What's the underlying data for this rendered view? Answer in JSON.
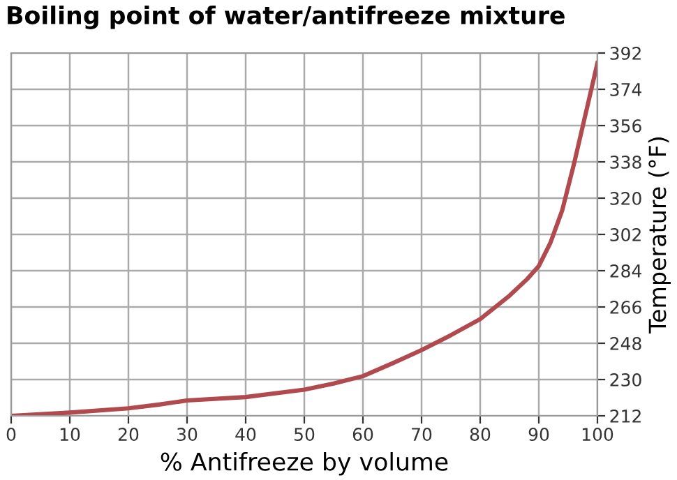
{
  "chart_data": {
    "type": "line",
    "title": "Boiling point of water/antifreeze mixture",
    "xlabel": "% Antifreeze by volume",
    "ylabel": "Temperature (°F)",
    "x": [
      0,
      10,
      20,
      25,
      30,
      40,
      50,
      55,
      60,
      65,
      70,
      75,
      80,
      85,
      88,
      90,
      92,
      94,
      96,
      98,
      100
    ],
    "series": [
      {
        "color": "#b04a4e",
        "values": [
          212,
          213.6,
          215.7,
          217.5,
          219.6,
          221.3,
          225,
          228,
          231.7,
          238,
          244.6,
          252,
          260,
          271.6,
          279.8,
          286.3,
          298,
          314,
          337,
          362,
          387
        ]
      }
    ],
    "xlim": [
      0,
      100
    ],
    "ylim": [
      212,
      392
    ],
    "xticks": [
      0,
      10,
      20,
      30,
      40,
      50,
      60,
      70,
      80,
      90,
      100
    ],
    "yticks": [
      212,
      230,
      248,
      266,
      284,
      302,
      320,
      338,
      356,
      374,
      392
    ],
    "grid": true,
    "legend": false,
    "marker": "none",
    "line_style": "solid"
  }
}
